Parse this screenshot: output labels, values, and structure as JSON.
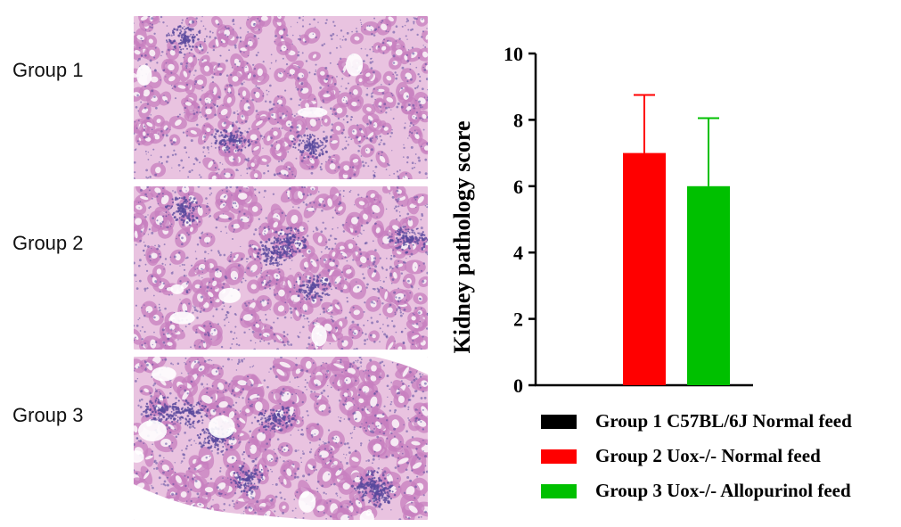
{
  "groups": [
    {
      "label": "Group 1"
    },
    {
      "label": "Group 2"
    },
    {
      "label": "Group 3"
    }
  ],
  "colors": {
    "tissue_base": "#e9c3e0",
    "tubule": "#c77fbf",
    "nuclei": "#5a4a9e",
    "lumen": "#f8eef6"
  },
  "chart_data": {
    "type": "bar",
    "categories": [
      "Group 1",
      "Group 2",
      "Group 3"
    ],
    "values": [
      0,
      7,
      6
    ],
    "errors": [
      0,
      1.75,
      2.05
    ],
    "colors": [
      "#000000",
      "#ff0000",
      "#00c000"
    ],
    "title": "",
    "xlabel": "",
    "ylabel": "Kidney pathology score",
    "ylim": [
      0,
      10
    ],
    "yticks": [
      "0",
      "2",
      "4",
      "6",
      "8",
      "10"
    ],
    "grid": false,
    "legend_position": "bottom",
    "legend": [
      {
        "label": "Group 1 C57BL/6J Normal feed",
        "color": "#000000"
      },
      {
        "label": "Group 2 Uox-/- Normal feed",
        "color": "#ff0000"
      },
      {
        "label": "Group 3 Uox-/- Allopurinol feed",
        "color": "#00c000"
      }
    ]
  }
}
